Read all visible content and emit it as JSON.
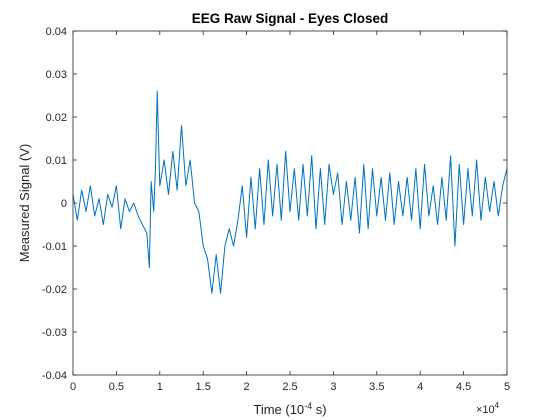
{
  "chart_data": {
    "type": "line",
    "title": "EEG Raw Signal - Eyes Closed",
    "xlabel_main": "Time (10",
    "xlabel_exp": "-4",
    "xlabel_tail": " s)",
    "ylabel": "Measured Signal (V)",
    "x_multiplier_base": "×10",
    "x_multiplier_exp": "4",
    "xlim": [
      0,
      5
    ],
    "ylim": [
      -0.04,
      0.04
    ],
    "xticks": [
      0,
      0.5,
      1,
      1.5,
      2,
      2.5,
      3,
      3.5,
      4,
      4.5,
      5
    ],
    "xtick_labels": [
      "0",
      "0.5",
      "1",
      "1.5",
      "2",
      "2.5",
      "3",
      "3.5",
      "4",
      "4.5",
      "5"
    ],
    "yticks": [
      -0.04,
      -0.03,
      -0.02,
      -0.01,
      0,
      0.01,
      0.02,
      0.03,
      0.04
    ],
    "ytick_labels": [
      "-0.04",
      "-0.03",
      "-0.02",
      "-0.01",
      "0",
      "0.01",
      "0.02",
      "0.03",
      "0.04"
    ],
    "grid": false,
    "box": true,
    "line_color": "#0072BD",
    "series": [
      {
        "x": [
          0.0,
          0.05,
          0.1,
          0.15,
          0.2,
          0.25,
          0.3,
          0.35,
          0.4,
          0.45,
          0.5,
          0.55,
          0.6,
          0.65,
          0.7,
          0.75,
          0.8,
          0.85,
          0.88,
          0.9,
          0.93,
          0.95,
          0.97,
          1.0,
          1.05,
          1.1,
          1.15,
          1.2,
          1.25,
          1.3,
          1.35,
          1.4,
          1.45,
          1.5,
          1.55,
          1.6,
          1.65,
          1.7,
          1.75,
          1.8,
          1.85,
          1.9,
          1.95,
          2.0,
          2.05,
          2.1,
          2.15,
          2.2,
          2.25,
          2.3,
          2.35,
          2.4,
          2.45,
          2.5,
          2.55,
          2.6,
          2.65,
          2.7,
          2.75,
          2.8,
          2.85,
          2.9,
          2.95,
          3.0,
          3.05,
          3.1,
          3.15,
          3.2,
          3.25,
          3.3,
          3.35,
          3.4,
          3.45,
          3.5,
          3.55,
          3.6,
          3.65,
          3.7,
          3.75,
          3.8,
          3.85,
          3.9,
          3.95,
          4.0,
          4.05,
          4.1,
          4.15,
          4.2,
          4.25,
          4.3,
          4.35,
          4.4,
          4.45,
          4.5,
          4.55,
          4.6,
          4.65,
          4.7,
          4.75,
          4.8,
          4.85,
          4.9,
          4.95,
          5.0
        ],
        "y": [
          0.002,
          -0.004,
          0.003,
          -0.002,
          0.004,
          -0.003,
          0.001,
          -0.005,
          0.002,
          -0.001,
          0.004,
          -0.006,
          0.001,
          -0.002,
          0.0,
          -0.003,
          -0.005,
          -0.007,
          -0.015,
          0.005,
          -0.002,
          0.008,
          0.026,
          0.004,
          0.01,
          0.002,
          0.012,
          0.003,
          0.018,
          0.004,
          0.01,
          0.0,
          -0.002,
          -0.01,
          -0.013,
          -0.021,
          -0.012,
          -0.021,
          -0.01,
          -0.006,
          -0.01,
          -0.004,
          0.004,
          -0.008,
          0.006,
          -0.006,
          0.008,
          -0.005,
          0.01,
          -0.003,
          0.009,
          -0.004,
          0.012,
          -0.002,
          0.008,
          -0.004,
          0.009,
          -0.003,
          0.011,
          -0.006,
          0.008,
          -0.005,
          0.009,
          0.002,
          0.007,
          -0.005,
          0.005,
          -0.004,
          0.006,
          -0.007,
          0.009,
          -0.006,
          0.008,
          -0.003,
          0.006,
          -0.004,
          0.007,
          -0.005,
          0.005,
          -0.003,
          0.006,
          -0.004,
          0.008,
          -0.006,
          0.009,
          -0.003,
          0.004,
          -0.005,
          0.006,
          -0.004,
          0.011,
          -0.01,
          0.009,
          -0.005,
          0.008,
          -0.003,
          0.01,
          -0.004,
          0.006,
          -0.002,
          0.005,
          -0.003,
          0.004,
          0.008
        ]
      }
    ]
  }
}
